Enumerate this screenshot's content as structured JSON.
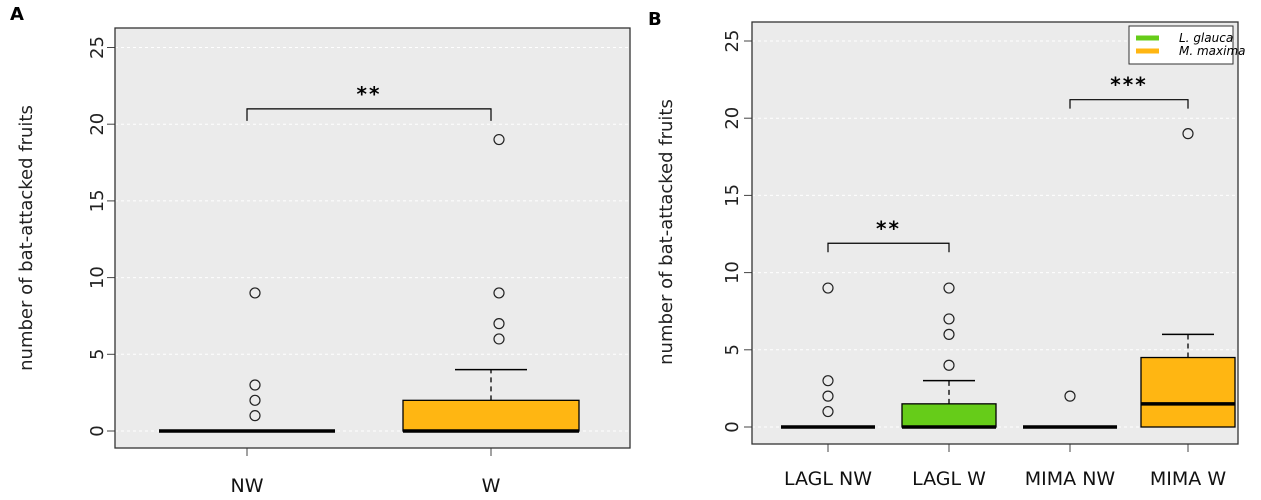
{
  "chart_data": [
    {
      "panel_label": "A",
      "type": "boxplot",
      "ylabel": "number of bat-attacked fruits",
      "ylim": [
        0,
        25
      ],
      "yticks": [
        0,
        5,
        10,
        15,
        20,
        25
      ],
      "ytick_labels": [
        "0",
        "5",
        "10",
        "15",
        "20",
        "25"
      ],
      "grid": true,
      "categories": [
        "NW",
        "W"
      ],
      "boxes": [
        {
          "category": "NW",
          "min": 0,
          "q1": 0,
          "median": 0,
          "q3": 0,
          "max": 0,
          "outliers": [
            1,
            2,
            3,
            9
          ],
          "color": "#000000"
        },
        {
          "category": "W",
          "min": 0,
          "q1": 0,
          "median": 0,
          "q3": 2,
          "max": 4,
          "outliers": [
            6,
            7,
            9,
            19
          ],
          "color": "#FFB612"
        }
      ],
      "annotations": [
        {
          "from": "NW",
          "to": "W",
          "y": 21,
          "label": "**"
        }
      ]
    },
    {
      "panel_label": "B",
      "type": "boxplot",
      "ylabel": "number of bat-attacked fruits",
      "ylim": [
        0,
        25
      ],
      "yticks": [
        0,
        5,
        10,
        15,
        20,
        25
      ],
      "ytick_labels": [
        "0",
        "5",
        "10",
        "15",
        "20",
        "25"
      ],
      "grid": true,
      "categories": [
        "LAGL NW",
        "LAGL W",
        "MIMA NW",
        "MIMA W"
      ],
      "boxes": [
        {
          "category": "LAGL NW",
          "min": 0,
          "q1": 0,
          "median": 0,
          "q3": 0,
          "max": 0,
          "outliers": [
            1,
            2,
            3,
            9
          ],
          "color": "#000000"
        },
        {
          "category": "LAGL W",
          "min": 0,
          "q1": 0,
          "median": 0,
          "q3": 1.5,
          "max": 3,
          "outliers": [
            4,
            6,
            7,
            9
          ],
          "color": "#66CC19"
        },
        {
          "category": "MIMA NW",
          "min": 0,
          "q1": 0,
          "median": 0,
          "q3": 0,
          "max": 0,
          "outliers": [
            2
          ],
          "color": "#000000"
        },
        {
          "category": "MIMA W",
          "min": 0,
          "q1": 0,
          "median": 1.5,
          "q3": 4.5,
          "max": 6,
          "outliers": [
            19
          ],
          "color": "#FFB612"
        }
      ],
      "annotations": [
        {
          "from": "LAGL NW",
          "to": "LAGL W",
          "y": 11.9,
          "label": "**"
        },
        {
          "from": "MIMA NW",
          "to": "MIMA W",
          "y": 21.2,
          "label": "***"
        }
      ],
      "legend": {
        "placement": "top-right",
        "entries": [
          {
            "label": "L. glauca",
            "color": "#66CC19"
          },
          {
            "label": "M. maxima",
            "color": "#FFB612"
          }
        ]
      }
    }
  ]
}
